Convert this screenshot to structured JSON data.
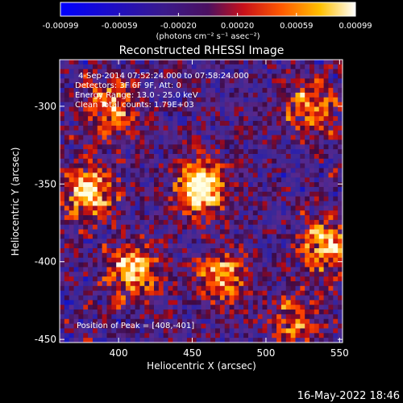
{
  "chart_data": {
    "type": "heatmap",
    "title": "Reconstructed RHESSI Image",
    "xlabel": "Heliocentric X (arcsec)",
    "ylabel": "Heliocentric Y (arcsec)",
    "xlim": [
      360,
      552
    ],
    "ylim": [
      -452,
      -270
    ],
    "x_ticks": [
      400,
      450,
      500,
      550
    ],
    "y_ticks": [
      -300,
      -350,
      -400,
      -450
    ],
    "colorbar": {
      "ticks": [
        "-0.00099",
        "-0.00059",
        "-0.00020",
        "0.00020",
        "0.00059",
        "0.00099"
      ],
      "unit_line": "(photons cm⁻² s⁻¹ asec⁻²)",
      "min": -0.00099,
      "max": 0.00099
    },
    "annotations": [
      "4-Sep-2014 07:52:24.000 to 07:58:24.000",
      "Detectors: 3F 6F 9F, Att: 0",
      "Energy Range: 13.0 - 25.0 keV",
      "Clean     Total counts: 1.79E+03"
    ],
    "peak_label": "Position of Peak = [408,-401]",
    "peak": [
      408,
      -401
    ],
    "hotspots": [
      {
        "x": 456,
        "y": -352,
        "value": 1.0
      },
      {
        "x": 380,
        "y": -355,
        "value": 0.85
      },
      {
        "x": 540,
        "y": -390,
        "value": 0.75
      },
      {
        "x": 410,
        "y": -405,
        "value": 0.8
      },
      {
        "x": 470,
        "y": -410,
        "value": 0.7
      },
      {
        "x": 395,
        "y": -300,
        "value": 0.65
      },
      {
        "x": 530,
        "y": -300,
        "value": 0.6
      },
      {
        "x": 520,
        "y": -440,
        "value": 0.55
      }
    ]
  },
  "footer": {
    "timestamp": "16-May-2022 18:46"
  }
}
